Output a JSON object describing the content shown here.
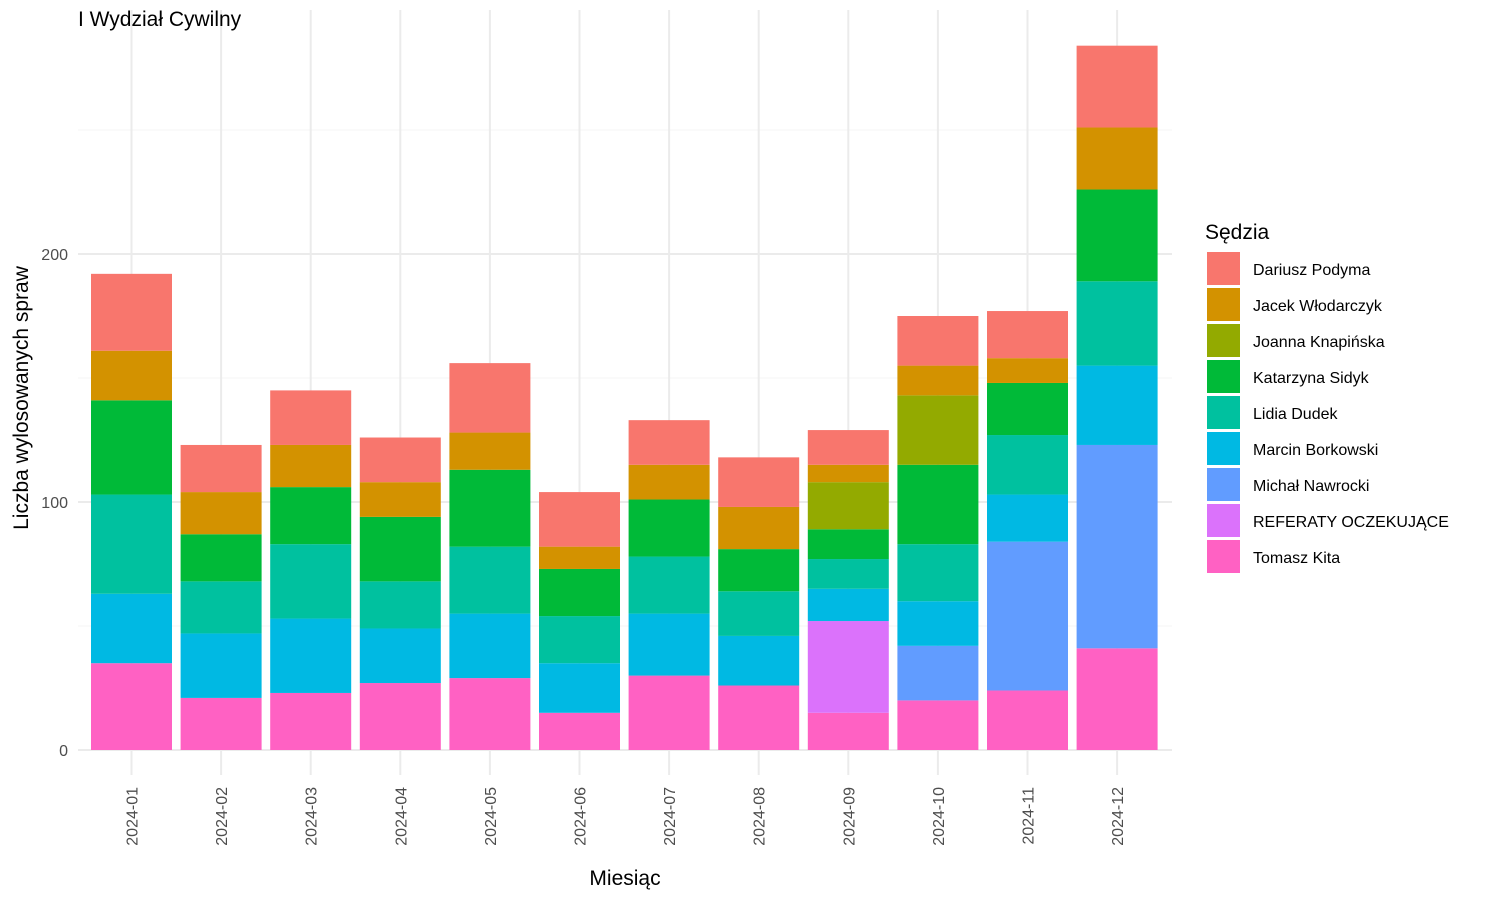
{
  "chart_data": {
    "type": "bar",
    "stacked": true,
    "title": "I Wydział Cywilny",
    "xlabel": "Miesiąc",
    "ylabel": "Liczba wylosowanych spraw",
    "ylim": [
      -12,
      285
    ],
    "yticks": [
      0,
      100,
      200
    ],
    "legend_title": "Sędzia",
    "legend_position": "right",
    "grid": true,
    "categories": [
      "2024-01",
      "2024-02",
      "2024-03",
      "2024-04",
      "2024-05",
      "2024-06",
      "2024-07",
      "2024-08",
      "2024-09",
      "2024-10",
      "2024-11",
      "2024-12"
    ],
    "series": [
      {
        "name": "Tomasz Kita",
        "color": "#FF61C3",
        "values": [
          35,
          21,
          23,
          27,
          29,
          15,
          30,
          26,
          15,
          20,
          24,
          41
        ]
      },
      {
        "name": "REFERATY OCZEKUJĄCE",
        "color": "#DB72FB",
        "values": [
          0,
          0,
          0,
          0,
          0,
          0,
          0,
          0,
          37,
          0,
          0,
          0
        ]
      },
      {
        "name": "Michał Nawrocki",
        "color": "#619CFF",
        "values": [
          0,
          0,
          0,
          0,
          0,
          0,
          0,
          0,
          0,
          22,
          60,
          82
        ]
      },
      {
        "name": "Marcin Borkowski",
        "color": "#00B9E3",
        "values": [
          28,
          26,
          30,
          22,
          26,
          20,
          25,
          20,
          13,
          18,
          19,
          32
        ]
      },
      {
        "name": "Lidia Dudek",
        "color": "#00C19F",
        "values": [
          40,
          21,
          30,
          19,
          27,
          19,
          23,
          18,
          12,
          23,
          24,
          34
        ]
      },
      {
        "name": "Katarzyna Sidyk",
        "color": "#00BA38",
        "values": [
          38,
          19,
          23,
          26,
          31,
          19,
          23,
          17,
          12,
          32,
          21,
          37
        ]
      },
      {
        "name": "Joanna Knapińska",
        "color": "#93AA00",
        "values": [
          0,
          0,
          0,
          0,
          0,
          0,
          0,
          0,
          19,
          28,
          0,
          0
        ]
      },
      {
        "name": "Jacek Włodarczyk",
        "color": "#D39200",
        "values": [
          20,
          17,
          17,
          14,
          15,
          9,
          14,
          17,
          7,
          12,
          10,
          25
        ]
      },
      {
        "name": "Dariusz Podyma",
        "color": "#F8766D",
        "values": [
          31,
          19,
          22,
          18,
          28,
          22,
          18,
          20,
          14,
          20,
          19,
          33
        ]
      }
    ]
  }
}
